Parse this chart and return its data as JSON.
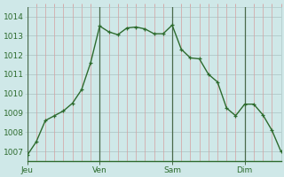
{
  "background_color": "#cfe8e8",
  "line_color": "#2d6b2d",
  "marker_color": "#2d6b2d",
  "grid_color_h": "#b0c8c8",
  "grid_color_v": "#d4a0a0",
  "day_line_color": "#4a6a4a",
  "ylim": [
    1006.5,
    1014.5
  ],
  "yticks": [
    1007,
    1008,
    1009,
    1010,
    1011,
    1012,
    1013,
    1014
  ],
  "day_labels": [
    "Jeu",
    "Ven",
    "Sam",
    "Dim"
  ],
  "day_positions": [
    0,
    8,
    16,
    24
  ],
  "n_points": 29,
  "x_values": [
    0,
    1,
    2,
    3,
    4,
    5,
    6,
    7,
    8,
    9,
    10,
    11,
    12,
    13,
    14,
    15,
    16,
    17,
    18,
    19,
    20,
    21,
    22,
    23,
    24,
    25,
    26,
    27,
    28
  ],
  "y_values": [
    1006.8,
    1007.5,
    1008.6,
    1008.85,
    1009.1,
    1009.5,
    1010.2,
    1011.6,
    1013.5,
    1013.2,
    1013.05,
    1013.4,
    1013.45,
    1013.35,
    1013.1,
    1013.1,
    1013.55,
    1012.3,
    1011.85,
    1011.8,
    1011.0,
    1010.6,
    1009.25,
    1008.85,
    1009.45,
    1009.45,
    1008.9,
    1008.1,
    1007.0
  ]
}
